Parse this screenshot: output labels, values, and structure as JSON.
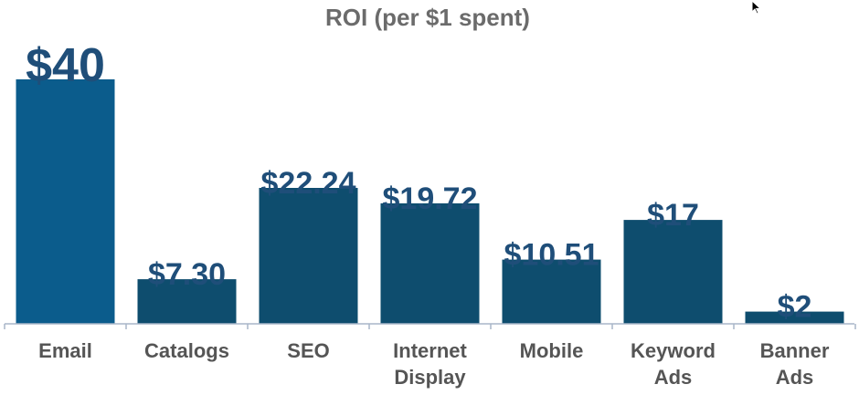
{
  "chart_data": {
    "type": "bar",
    "title": "ROI (per $1 spent)",
    "xlabel": "",
    "ylabel": "",
    "categories": [
      [
        "Email"
      ],
      [
        "Catalogs"
      ],
      [
        "SEO"
      ],
      [
        "Internet",
        "Display"
      ],
      [
        "Mobile"
      ],
      [
        "Keyword",
        "Ads"
      ],
      [
        "Banner",
        "Ads"
      ]
    ],
    "values": [
      40,
      7.3,
      22.24,
      19.72,
      10.51,
      17,
      2
    ],
    "value_labels": [
      "$40",
      "$7.30",
      "$22.24",
      "$19.72",
      "$10.51",
      "$17",
      "$2"
    ],
    "ylim": [
      0,
      40
    ],
    "grid": false,
    "colors": {
      "highlight": "#0b5c8c",
      "bar": "#0e4d6e",
      "label": "#1f4e79",
      "axis": "#a9b6c8"
    },
    "highlight_index": 0
  },
  "icons": {
    "cursor": "mouse-pointer-icon"
  }
}
